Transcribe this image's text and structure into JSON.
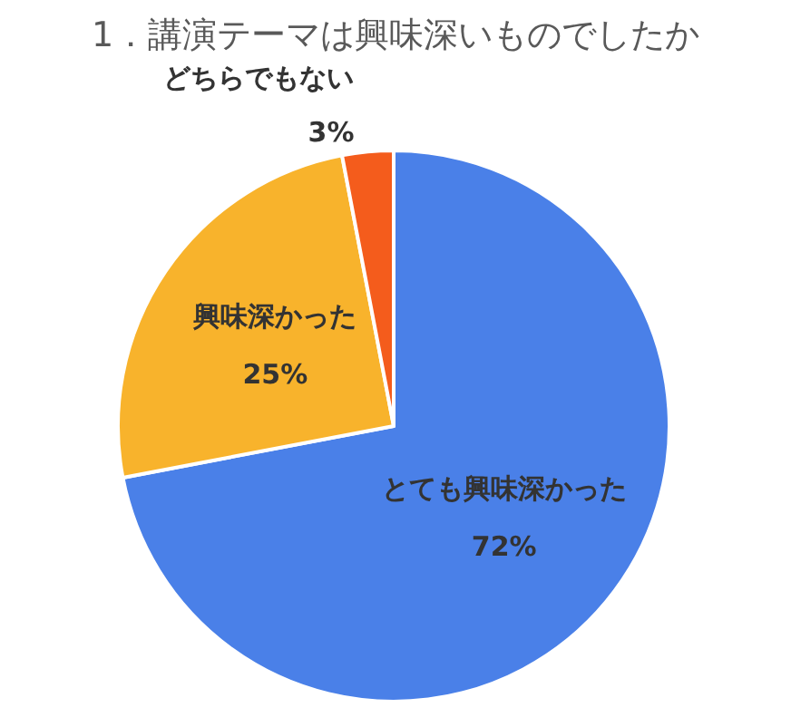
{
  "chart_data": {
    "type": "pie",
    "title": "1．講演テーマは興味深いものでしたか",
    "categories": [
      "とても興味深かった",
      "興味深かった",
      "どちらでもない"
    ],
    "values": [
      72,
      25,
      3
    ],
    "colors": [
      "#4a80e8",
      "#f8b32c",
      "#f45c1c"
    ],
    "value_labels": [
      "72%",
      "25%",
      "3%"
    ]
  }
}
